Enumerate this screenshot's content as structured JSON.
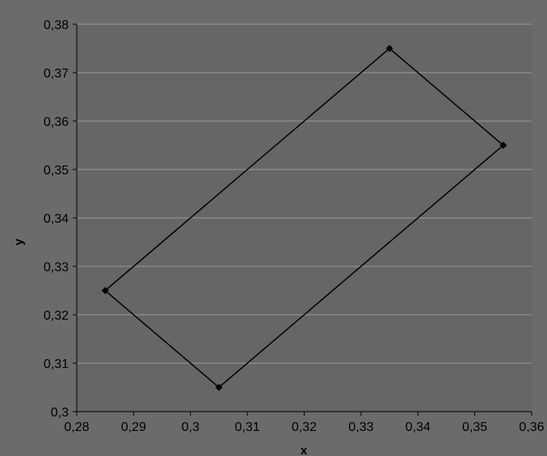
{
  "chart_data": {
    "type": "scatter",
    "title": "",
    "xlabel": "x",
    "ylabel": "y",
    "xlim": [
      0.28,
      0.36
    ],
    "ylim": [
      0.3,
      0.38
    ],
    "x_ticks": [
      "0,28",
      "0,29",
      "0,3",
      "0,31",
      "0,32",
      "0,33",
      "0,34",
      "0,35",
      "0,36"
    ],
    "y_ticks": [
      "0,3",
      "0,31",
      "0,32",
      "0,33",
      "0,34",
      "0,35",
      "0,36",
      "0,37",
      "0,38"
    ],
    "grid": "horizontal",
    "legend": "none",
    "series": [
      {
        "points": [
          {
            "x": 0.285,
            "y": 0.325
          },
          {
            "x": 0.305,
            "y": 0.305
          },
          {
            "x": 0.355,
            "y": 0.355
          },
          {
            "x": 0.335,
            "y": 0.375
          },
          {
            "x": 0.285,
            "y": 0.325
          }
        ],
        "line_color": "#000000",
        "marker": "diamond"
      }
    ],
    "colors": {
      "background": "#6b6b6b",
      "plot_area": "#666666",
      "gridline": "#9a9a9a",
      "axis": "#000000"
    }
  }
}
